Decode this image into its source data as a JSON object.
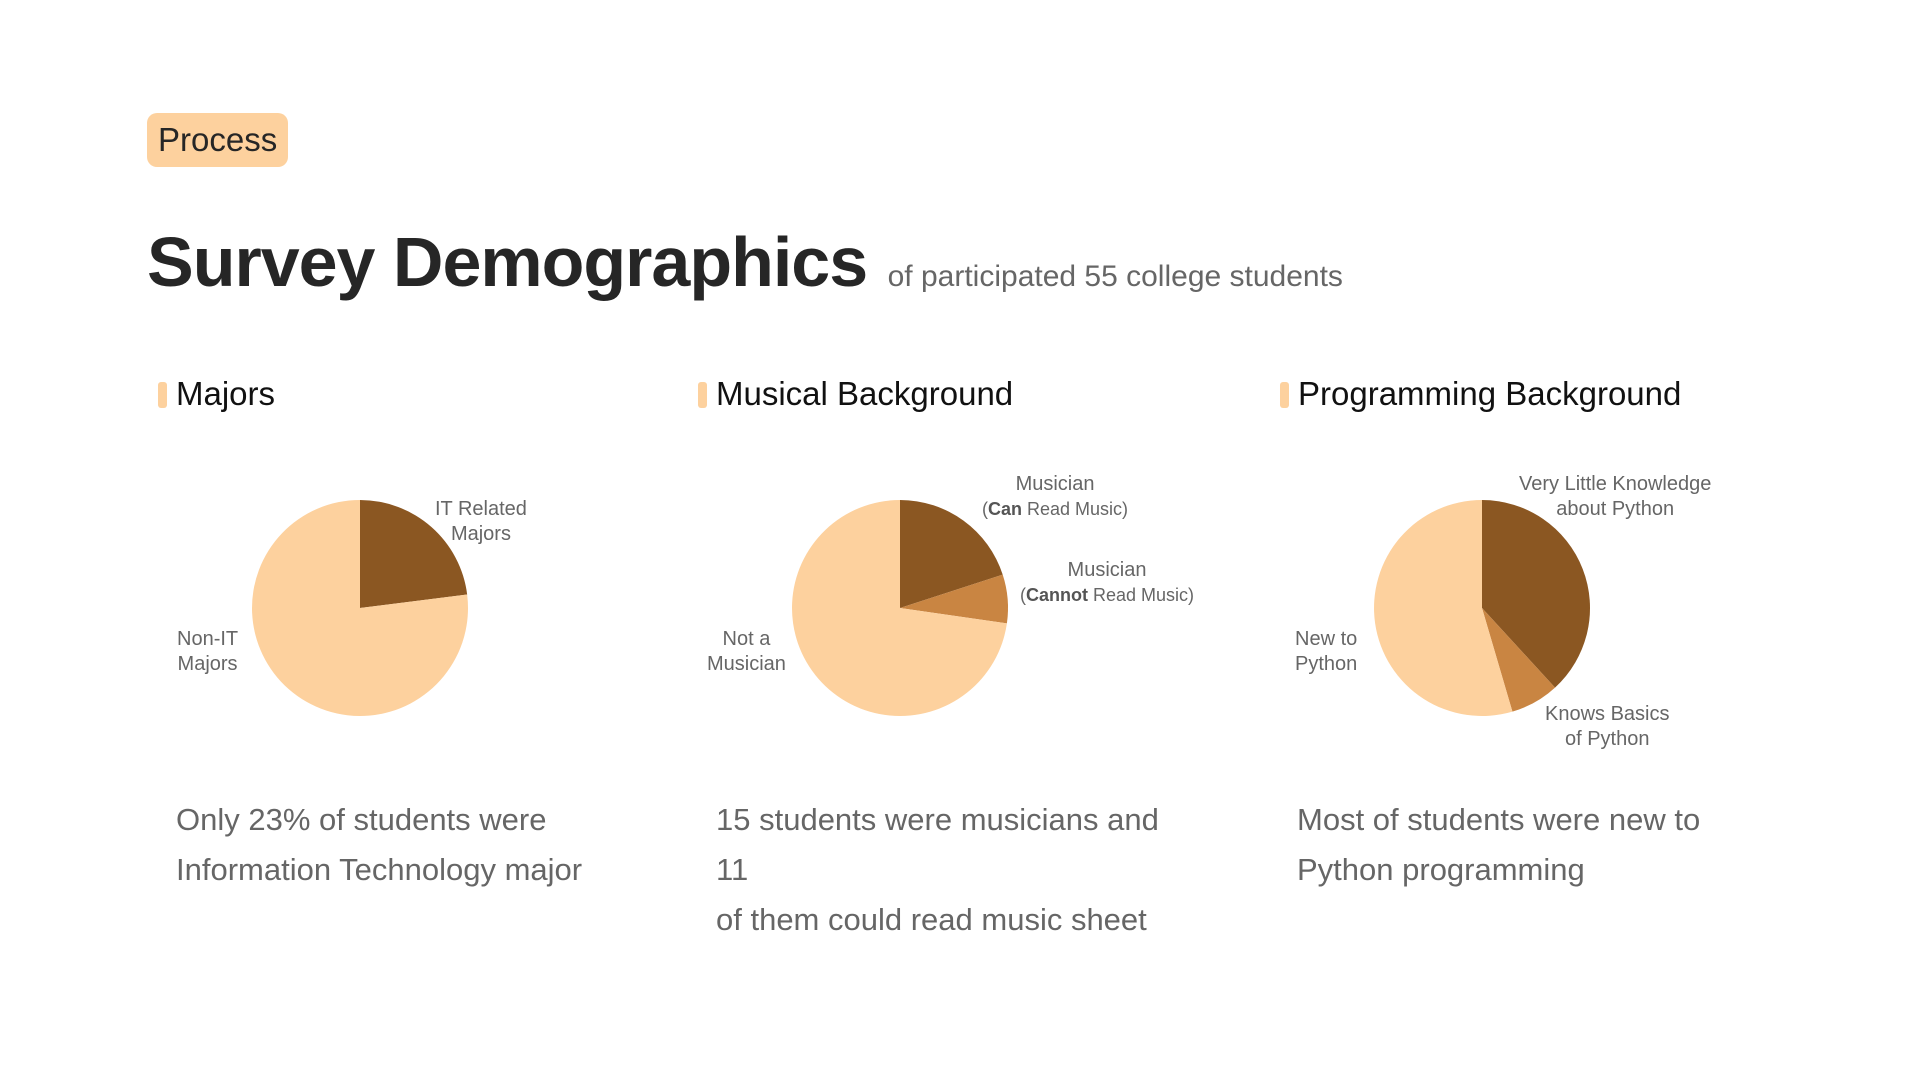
{
  "tag": "Process",
  "title": "Survey Demographics",
  "subtitle": "of participated 55 college students",
  "colors": {
    "light": "#fdd19e",
    "dark": "#8b5722",
    "mid": "#c98542",
    "accent_bar": "#fdd19e"
  },
  "sections": [
    {
      "heading": "Majors",
      "caption_line1": "Only 23% of students were",
      "caption_line2": "Information Technology major"
    },
    {
      "heading": "Musical Background",
      "caption_line1": "15 students were musicians and 11",
      "caption_line2": "of them could read music sheet"
    },
    {
      "heading": "Programming Background",
      "caption_line1": "Most of students were new to",
      "caption_line2": "Python programming"
    }
  ],
  "chart_data": [
    {
      "type": "pie",
      "title": "Majors",
      "labels": [
        "IT Related Majors",
        "Non-IT Majors"
      ],
      "values": [
        23,
        77
      ],
      "label_lines": [
        [
          "IT Related",
          "Majors"
        ],
        [
          "Non-IT",
          "Majors"
        ]
      ],
      "colors": [
        "#8b5722",
        "#fdd19e"
      ]
    },
    {
      "type": "pie",
      "title": "Musical Background",
      "labels": [
        "Musician (Can Read Music)",
        "Musician (Cannot Read Music)",
        "Not a Musician"
      ],
      "values": [
        11,
        4,
        40
      ],
      "label_lines": [
        [
          "Musician",
          "(Can Read Music)"
        ],
        [
          "Musician",
          "(Cannot Read Music)"
        ],
        [
          "Not a",
          "Musician"
        ]
      ],
      "label_bold": [
        "Can",
        "Cannot",
        ""
      ],
      "colors": [
        "#8b5722",
        "#c98542",
        "#fdd19e"
      ]
    },
    {
      "type": "pie",
      "title": "Programming Background",
      "labels": [
        "Very Little Knowledge about Python",
        "Knows Basics of Python",
        "New to Python"
      ],
      "values": [
        21,
        4,
        30
      ],
      "label_lines": [
        [
          "Very Little Knowledge",
          "about Python"
        ],
        [
          "Knows Basics",
          "of Python"
        ],
        [
          "New to",
          "Python"
        ]
      ],
      "colors": [
        "#8b5722",
        "#c98542",
        "#fdd19e"
      ]
    }
  ]
}
